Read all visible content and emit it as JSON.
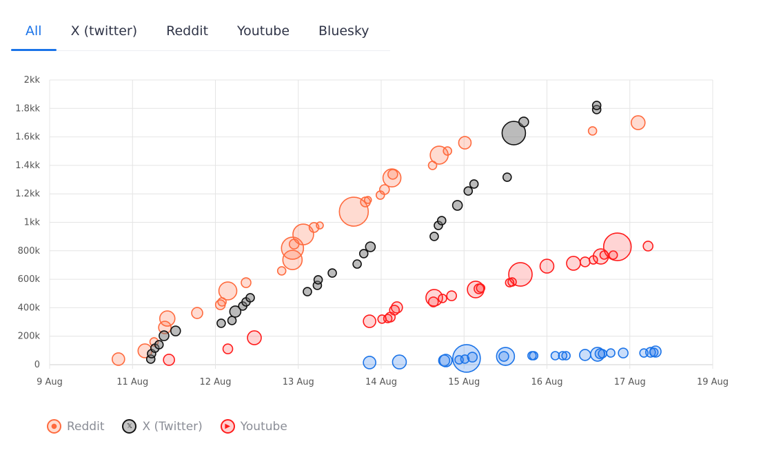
{
  "tabs": [
    {
      "label": "All",
      "active": true
    },
    {
      "label": "X (twitter)",
      "active": false
    },
    {
      "label": "Reddit",
      "active": false
    },
    {
      "label": "Youtube",
      "active": false
    },
    {
      "label": "Bluesky",
      "active": false
    }
  ],
  "legend": [
    {
      "label": "Reddit",
      "icon": "reddit-icon",
      "stroke": "#ff6a3d",
      "fill": "#ffdcd0"
    },
    {
      "label": "X (Twitter)",
      "icon": "x-logo-icon",
      "stroke": "#111111",
      "fill": "#c4c4c4"
    },
    {
      "label": "Youtube",
      "icon": "youtube-icon",
      "stroke": "#ff1a1a",
      "fill": "#ffd0d0"
    }
  ],
  "chart_data": {
    "type": "scatter",
    "subtype": "bubble",
    "grid": true,
    "x_unit": "day of August",
    "x_ticks": [
      "9 Aug",
      "11 Aug",
      "12 Aug",
      "13 Aug",
      "14 Aug",
      "15 Aug",
      "16 Aug",
      "17 Aug",
      "19 Aug"
    ],
    "xlim": [
      10,
      18
    ],
    "ylim": [
      0,
      2000000
    ],
    "y_ticks": [
      {
        "value": 0,
        "label": "0"
      },
      {
        "value": 200000,
        "label": "200k"
      },
      {
        "value": 400000,
        "label": "400k"
      },
      {
        "value": 600000,
        "label": "600k"
      },
      {
        "value": 800000,
        "label": "800k"
      },
      {
        "value": 1000000,
        "label": "1kk"
      },
      {
        "value": 1200000,
        "label": "1.2kk"
      },
      {
        "value": 1400000,
        "label": "1.4kk"
      },
      {
        "value": 1600000,
        "label": "1.6kk"
      },
      {
        "value": 1800000,
        "label": "1.8kk"
      },
      {
        "value": 2000000,
        "label": "2kk"
      }
    ],
    "point_format": [
      "x_day",
      "y",
      "size"
    ],
    "series": [
      {
        "name": "Reddit",
        "stroke": "#ff6a3d",
        "fill": "rgba(255,110,70,0.25)",
        "points": [
          [
            10.83,
            39000,
            9
          ],
          [
            11.15,
            97000,
            10
          ],
          [
            11.26,
            160000,
            6
          ],
          [
            11.39,
            261000,
            9
          ],
          [
            11.42,
            324000,
            11
          ],
          [
            11.78,
            363000,
            8
          ],
          [
            12.06,
            421000,
            7
          ],
          [
            12.08,
            441000,
            6
          ],
          [
            12.15,
            518000,
            13
          ],
          [
            12.37,
            576000,
            7
          ],
          [
            12.8,
            659000,
            6
          ],
          [
            12.93,
            736000,
            14
          ],
          [
            12.93,
            818000,
            16
          ],
          [
            12.95,
            847000,
            7
          ],
          [
            13.06,
            915000,
            15
          ],
          [
            13.19,
            964000,
            7
          ],
          [
            13.26,
            978000,
            5
          ],
          [
            13.67,
            1075000,
            21
          ],
          [
            13.81,
            1143000,
            7
          ],
          [
            13.84,
            1157000,
            5
          ],
          [
            13.99,
            1191000,
            6
          ],
          [
            14.04,
            1230000,
            7
          ],
          [
            14.13,
            1312000,
            13
          ],
          [
            14.14,
            1337000,
            7
          ],
          [
            14.62,
            1400000,
            6
          ],
          [
            14.7,
            1472000,
            13
          ],
          [
            14.8,
            1501000,
            6
          ],
          [
            15.01,
            1559000,
            9
          ],
          [
            16.55,
            1642000,
            6
          ],
          [
            17.1,
            1700000,
            10
          ]
        ]
      },
      {
        "name": "X (Twitter)",
        "stroke": "#111111",
        "fill": "rgba(120,120,120,0.5)",
        "points": [
          [
            11.22,
            39000,
            6
          ],
          [
            11.23,
            77000,
            6
          ],
          [
            11.27,
            116000,
            6
          ],
          [
            11.32,
            140000,
            6
          ],
          [
            11.38,
            203000,
            7
          ],
          [
            11.52,
            237000,
            7
          ],
          [
            12.07,
            291000,
            6
          ],
          [
            12.2,
            310000,
            6
          ],
          [
            12.24,
            373000,
            8
          ],
          [
            12.33,
            412000,
            6
          ],
          [
            12.37,
            441000,
            6
          ],
          [
            12.42,
            470000,
            6
          ],
          [
            13.11,
            513000,
            6
          ],
          [
            13.23,
            557000,
            6
          ],
          [
            13.24,
            596000,
            6
          ],
          [
            13.41,
            644000,
            6
          ],
          [
            13.71,
            707000,
            6
          ],
          [
            13.79,
            780000,
            6
          ],
          [
            13.87,
            828000,
            7
          ],
          [
            14.64,
            901000,
            6
          ],
          [
            14.69,
            978000,
            6
          ],
          [
            14.73,
            1012000,
            6
          ],
          [
            14.92,
            1119000,
            7
          ],
          [
            15.05,
            1220000,
            6
          ],
          [
            15.12,
            1269000,
            6
          ],
          [
            15.52,
            1317000,
            6
          ],
          [
            15.6,
            1627000,
            17
          ],
          [
            15.72,
            1705000,
            7
          ],
          [
            16.6,
            1792000,
            6
          ],
          [
            16.6,
            1821000,
            6
          ]
        ]
      },
      {
        "name": "Youtube",
        "stroke": "#ff1a1a",
        "fill": "rgba(255,40,40,0.2)",
        "points": [
          [
            11.44,
            34000,
            8
          ],
          [
            12.15,
            111000,
            7
          ],
          [
            12.47,
            189000,
            10
          ],
          [
            13.86,
            305000,
            9
          ],
          [
            14.01,
            320000,
            6
          ],
          [
            14.08,
            324000,
            6
          ],
          [
            14.11,
            334000,
            7
          ],
          [
            14.16,
            383000,
            7
          ],
          [
            14.19,
            402000,
            8
          ],
          [
            14.63,
            441000,
            7
          ],
          [
            14.64,
            470000,
            12
          ],
          [
            14.74,
            465000,
            6
          ],
          [
            14.85,
            484000,
            7
          ],
          [
            15.14,
            528000,
            12
          ],
          [
            15.18,
            533000,
            7
          ],
          [
            15.2,
            538000,
            6
          ],
          [
            15.55,
            576000,
            6
          ],
          [
            15.58,
            581000,
            6
          ],
          [
            15.68,
            634000,
            17
          ],
          [
            16.0,
            692000,
            10
          ],
          [
            16.32,
            712000,
            10
          ],
          [
            16.46,
            722000,
            7
          ],
          [
            16.56,
            736000,
            6
          ],
          [
            16.65,
            760000,
            11
          ],
          [
            16.69,
            770000,
            6
          ],
          [
            16.8,
            770000,
            6
          ],
          [
            16.85,
            828000,
            20
          ],
          [
            17.22,
            833000,
            7
          ]
        ]
      },
      {
        "name": "Bluesky",
        "stroke": "#1a73e8",
        "fill": "rgba(40,120,235,0.25)",
        "points": [
          [
            13.86,
            15000,
            9
          ],
          [
            14.22,
            19000,
            10
          ],
          [
            14.78,
            29000,
            9
          ],
          [
            14.76,
            29000,
            8
          ],
          [
            14.94,
            34000,
            6
          ],
          [
            15.03,
            44000,
            20
          ],
          [
            15.01,
            39000,
            6
          ],
          [
            15.1,
            53000,
            7
          ],
          [
            15.5,
            58000,
            13
          ],
          [
            15.48,
            58000,
            7
          ],
          [
            15.82,
            63000,
            6
          ],
          [
            15.84,
            63000,
            6
          ],
          [
            16.1,
            63000,
            6
          ],
          [
            16.19,
            63000,
            6
          ],
          [
            16.23,
            63000,
            6
          ],
          [
            16.46,
            68000,
            8
          ],
          [
            16.61,
            73000,
            10
          ],
          [
            16.64,
            77000,
            7
          ],
          [
            16.67,
            77000,
            6
          ],
          [
            16.77,
            82000,
            6
          ],
          [
            16.92,
            82000,
            7
          ],
          [
            17.17,
            82000,
            6
          ],
          [
            17.25,
            87000,
            7
          ],
          [
            17.29,
            87000,
            6
          ],
          [
            17.31,
            92000,
            8
          ]
        ]
      }
    ]
  }
}
